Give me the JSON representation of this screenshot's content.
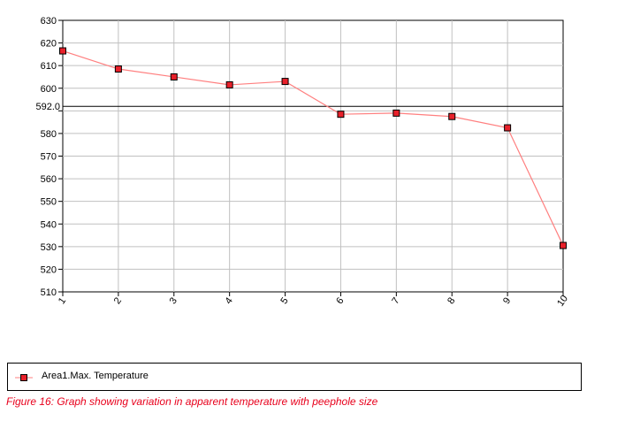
{
  "chart_data": {
    "type": "line",
    "x": [
      1,
      2,
      3,
      4,
      5,
      6,
      7,
      8,
      9,
      10
    ],
    "series": [
      {
        "name": "Area1.Max. Temperature",
        "values": [
          616.5,
          608.5,
          605.0,
          601.5,
          603.0,
          588.5,
          589.0,
          587.5,
          582.5,
          530.5
        ],
        "color": "#ff7f7f",
        "marker_color": "#e8202a"
      }
    ],
    "ylim": [
      510,
      630
    ],
    "yticks": [
      630,
      620,
      610,
      600,
      590,
      580,
      570,
      560,
      550,
      540,
      530,
      520,
      510
    ],
    "ytick_labels": [
      "630",
      "620",
      "610",
      "600",
      "",
      "580",
      "570",
      "560",
      "550",
      "540",
      "530",
      "520",
      "510"
    ],
    "xtick_labels": [
      "1",
      "2",
      "3",
      "4",
      "5",
      "6",
      "7",
      "8",
      "9",
      "10"
    ],
    "reference_line": {
      "value": 592.0,
      "label": "592.0",
      "color": "#000000"
    },
    "grid": true,
    "legend": "bottom"
  },
  "caption": "Figure 16: Graph showing variation in apparent temperature with peephole size"
}
